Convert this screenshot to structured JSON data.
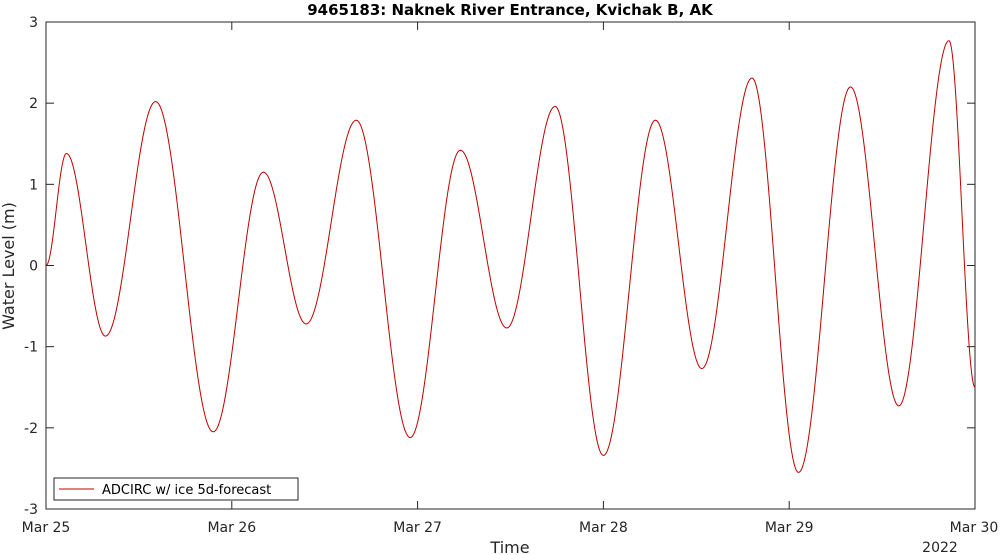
{
  "chart_data": {
    "type": "line",
    "title": "9465183: Naknek River Entrance, Kvichak B, AK",
    "xlabel": "Time",
    "ylabel": "Water Level (m)",
    "year_label": "2022",
    "xlim": [
      "Mar 25",
      "Mar 30"
    ],
    "ylim": [
      -3,
      3
    ],
    "x_ticks": [
      {
        "label": "Mar 25",
        "value": 0
      },
      {
        "label": "Mar 26",
        "value": 1
      },
      {
        "label": "Mar 27",
        "value": 2
      },
      {
        "label": "Mar 28",
        "value": 3
      },
      {
        "label": "Mar 29",
        "value": 4
      },
      {
        "label": "Mar 30",
        "value": 5
      }
    ],
    "y_ticks": [
      {
        "label": "3",
        "value": 3
      },
      {
        "label": "2",
        "value": 2
      },
      {
        "label": "1",
        "value": 1
      },
      {
        "label": "0",
        "value": 0
      },
      {
        "label": "-1",
        "value": -1
      },
      {
        "label": "-2",
        "value": -2
      },
      {
        "label": "-3",
        "value": -3
      }
    ],
    "grid": false,
    "legend_position": "bottom-left",
    "series": [
      {
        "name": "ADCIRC w/ ice 5d-forecast",
        "color": "#c00000",
        "extrema": [
          {
            "x": 0.0,
            "y": 0.0
          },
          {
            "x": 0.11,
            "y": 1.38
          },
          {
            "x": 0.32,
            "y": -0.87
          },
          {
            "x": 0.59,
            "y": 2.02
          },
          {
            "x": 0.9,
            "y": -2.05
          },
          {
            "x": 1.17,
            "y": 1.15
          },
          {
            "x": 1.4,
            "y": -0.72
          },
          {
            "x": 1.67,
            "y": 1.79
          },
          {
            "x": 1.96,
            "y": -2.12
          },
          {
            "x": 2.23,
            "y": 1.42
          },
          {
            "x": 2.48,
            "y": -0.77
          },
          {
            "x": 2.74,
            "y": 1.96
          },
          {
            "x": 3.0,
            "y": -2.34
          },
          {
            "x": 3.28,
            "y": 1.79
          },
          {
            "x": 3.53,
            "y": -1.27
          },
          {
            "x": 3.8,
            "y": 2.31
          },
          {
            "x": 4.05,
            "y": -2.55
          },
          {
            "x": 4.33,
            "y": 2.2
          },
          {
            "x": 4.59,
            "y": -1.73
          },
          {
            "x": 4.86,
            "y": 2.77
          },
          {
            "x": 5.0,
            "y": -1.5
          }
        ]
      }
    ]
  }
}
